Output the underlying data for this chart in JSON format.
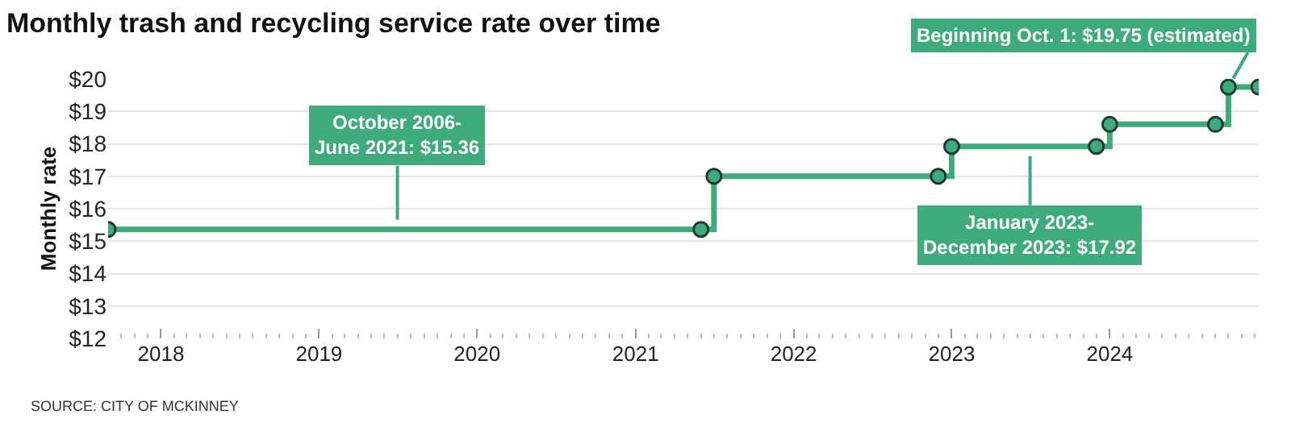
{
  "chart_data": {
    "type": "step",
    "title": "Monthly trash and recycling service rate over time",
    "ylabel": "Monthly rate",
    "x": [
      "2017-09-01",
      "2021-06-01",
      "2021-07-01",
      "2022-12-01",
      "2023-01-01",
      "2023-12-01",
      "2024-01-01",
      "2024-09-01",
      "2024-10-01",
      "2024-12-10"
    ],
    "series": [
      {
        "color": "#3dab7b",
        "values": [
          15.36,
          15.36,
          17,
          17,
          17.92,
          17.92,
          18.6,
          18.6,
          19.75,
          19.75
        ]
      }
    ],
    "xlim": [
      "2017-09-01",
      "2024-12-10"
    ],
    "xticks": [
      "2018",
      "2019",
      "2020",
      "2021",
      "2022",
      "2023",
      "2024"
    ],
    "ylim": [
      12,
      20
    ],
    "yticks": [
      {
        "value": 12,
        "label": "$12"
      },
      {
        "value": 13,
        "label": "$13"
      },
      {
        "value": 14,
        "label": "$14"
      },
      {
        "value": 15,
        "label": "$15"
      },
      {
        "value": 16,
        "label": "$16"
      },
      {
        "value": 17,
        "label": "$17"
      },
      {
        "value": 18,
        "label": "$18"
      },
      {
        "value": 19,
        "label": "$19"
      },
      {
        "value": 20,
        "label": "$20"
      }
    ],
    "grid": "y",
    "marker": "circle",
    "line_style": "solid",
    "annotations": [
      {
        "text": "October 2006-\nJune 2021: $15.36",
        "x": "2019-07-01",
        "y": 15.36
      },
      {
        "text": "January 2023-\nDecember 2023: $17.92",
        "x": "2023-07-01",
        "y": 17.92
      },
      {
        "text": "Beginning Oct. 1: $19.75 (estimated)",
        "x": "2024-10-01",
        "y": 19.75
      },
      "SOURCE: CITY OF MCKINNEY"
    ]
  }
}
